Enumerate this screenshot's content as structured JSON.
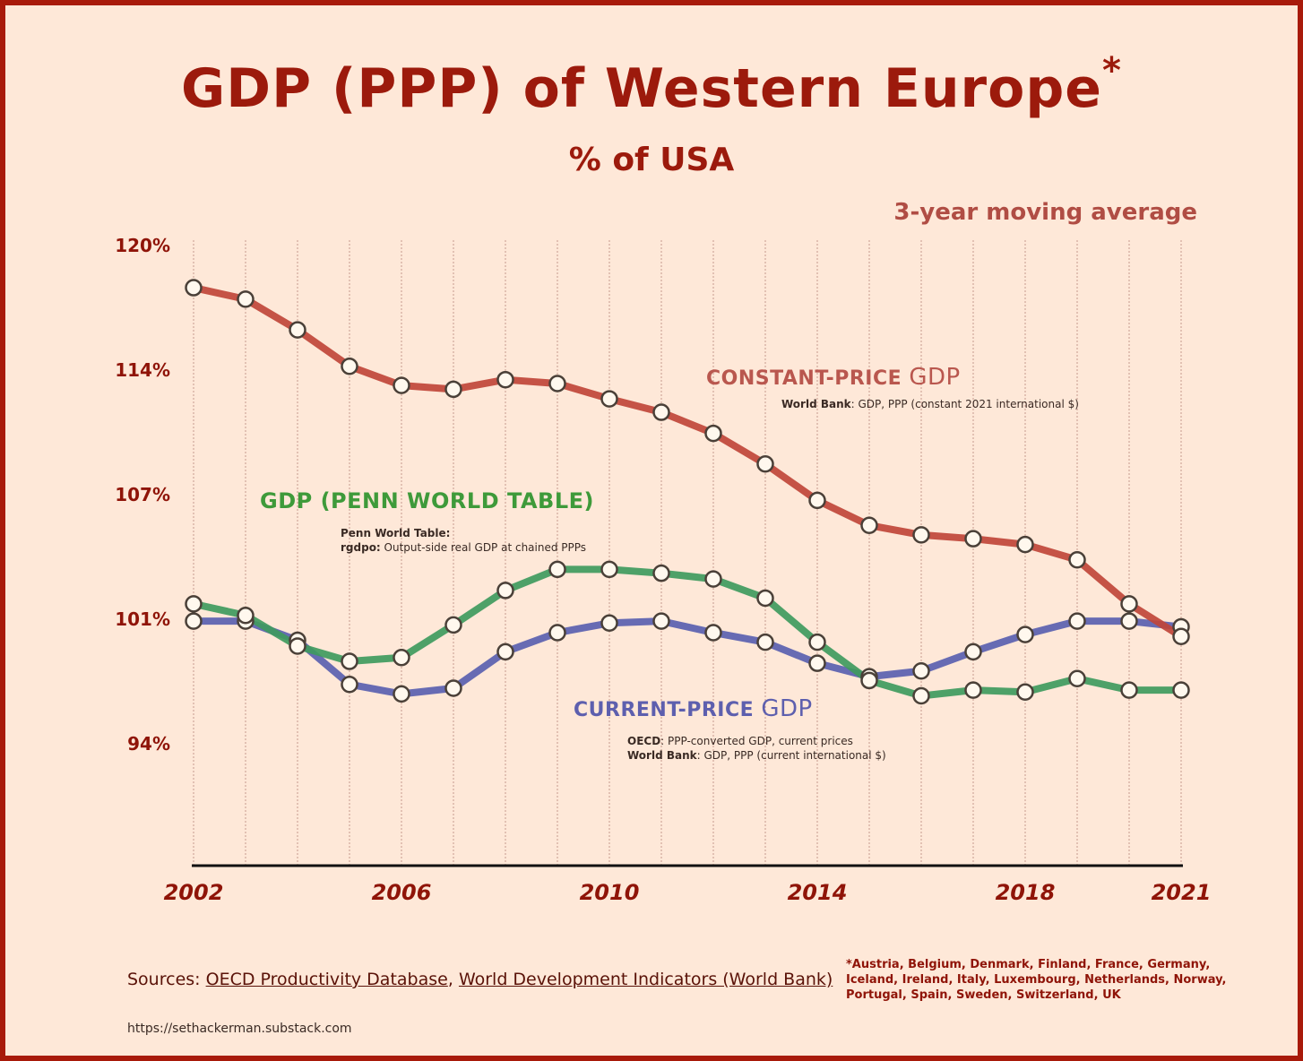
{
  "header": {
    "title": "GDP (PPP) of Western Europe",
    "title_marker": "*",
    "subtitle": "% of USA",
    "note": "3-year moving average"
  },
  "colors": {
    "background": "#fee8d8",
    "frame": "#a81a0a",
    "title": "#9c1a0c",
    "constant": "#c0453a",
    "penn": "#3f9a5e",
    "current": "#5a5fb0",
    "marker_fill": "#fff8ee",
    "marker_stroke": "#4a4038"
  },
  "series_labels": {
    "constant": {
      "prefix": "CONSTANT-PRICE",
      "suffix": "GDP"
    },
    "penn": {
      "text": "GDP (PENN WORLD TABLE)"
    },
    "current": {
      "prefix": "CURRENT-PRICE",
      "suffix": "GDP"
    }
  },
  "notes": {
    "constant": {
      "bold": "World Bank",
      "text": ": GDP, PPP (constant 2021 international $)"
    },
    "penn": {
      "line1_bold": "Penn World Table:",
      "line2_bold": "rgdpo:",
      "line2_text": " Output-side real GDP at chained PPPs"
    },
    "current": {
      "line1_bold": "OECD",
      "line1_text": ": PPP-converted GDP, current prices",
      "line2_bold": "World Bank",
      "line2_text": ": GDP, PPP (current international $)"
    }
  },
  "footer": {
    "sources_prefix": "Sources: ",
    "source1": "OECD Productivity Database",
    "sep": ", ",
    "source2": "World Development Indicators (World Bank)",
    "countries": "*Austria, Belgium, Denmark, Finland, France, Germany, Iceland, Ireland, Italy, Luxembourg, Netherlands, Norway, Portugal, Spain, Sweden, Switzerland, UK",
    "url": "https://sethackerman.substack.com"
  },
  "chart_data": {
    "type": "line",
    "title": "GDP (PPP) of Western Europe*",
    "subtitle": "% of USA",
    "annotation": "3-year moving average",
    "xlabel": "",
    "ylabel": "",
    "x": [
      2002,
      2003,
      2004,
      2005,
      2006,
      2007,
      2008,
      2009,
      2010,
      2011,
      2012,
      2013,
      2014,
      2015,
      2016,
      2017,
      2018,
      2019,
      2020,
      2021
    ],
    "x_tick_labels": [
      "2002",
      "2006",
      "2010",
      "2014",
      "2018",
      "2021"
    ],
    "x_ticks": [
      2002,
      2006,
      2010,
      2014,
      2018,
      2021
    ],
    "y_tick_labels": [
      "120%",
      "114%",
      "107%",
      "101%",
      "94%"
    ],
    "y_ticks": [
      120,
      113.5,
      107,
      100.5,
      94
    ],
    "ylim": [
      87.6,
      120
    ],
    "grid": "vertical dotted lines at every year",
    "legend": "inline labels",
    "series": [
      {
        "name": "CONSTANT-PRICE GDP",
        "key": "constant",
        "values": [
          117.8,
          117.2,
          115.6,
          113.7,
          112.7,
          112.5,
          113.0,
          112.8,
          112.0,
          111.3,
          110.2,
          108.6,
          106.7,
          105.4,
          104.9,
          104.7,
          104.4,
          103.6,
          101.3,
          99.6
        ]
      },
      {
        "name": "GDP (PENN WORLD TABLE)",
        "key": "penn",
        "values": [
          101.3,
          100.7,
          99.1,
          98.3,
          98.5,
          100.2,
          102.0,
          103.1,
          103.1,
          102.9,
          102.6,
          101.6,
          99.3,
          97.3,
          96.5,
          96.8,
          96.7,
          97.4,
          96.8,
          96.8
        ]
      },
      {
        "name": "CURRENT-PRICE GDP",
        "key": "current",
        "values": [
          100.4,
          100.4,
          99.4,
          97.1,
          96.6,
          96.9,
          98.8,
          99.8,
          100.3,
          100.4,
          99.8,
          99.3,
          98.2,
          97.5,
          97.8,
          98.8,
          99.7,
          100.4,
          100.4,
          100.1
        ]
      }
    ]
  }
}
